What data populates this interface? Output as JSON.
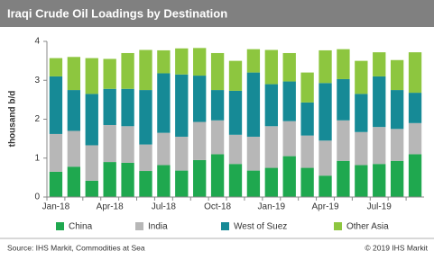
{
  "chart_data": {
    "type": "stacked-bar",
    "title": "Iraqi Crude Oil Loadings by Destination",
    "y_label": "thousand b/d",
    "categories": [
      "Jan-18",
      null,
      null,
      "Apr-18",
      null,
      null,
      "Jul-18",
      null,
      null,
      "Oct-18",
      null,
      null,
      "Jan-19",
      null,
      null,
      "Apr-19",
      null,
      null,
      "Jul-19",
      null,
      null
    ],
    "series": [
      {
        "name": "China",
        "color": "#1fa84f",
        "values": [
          0.65,
          0.78,
          0.42,
          0.9,
          0.88,
          0.67,
          0.82,
          0.68,
          0.95,
          1.1,
          0.85,
          0.68,
          0.75,
          1.05,
          0.75,
          0.55,
          0.93,
          0.82,
          0.85,
          0.93,
          1.1
        ]
      },
      {
        "name": "India",
        "color": "#b7b7b7",
        "values": [
          0.97,
          0.92,
          0.91,
          0.95,
          0.94,
          0.68,
          0.83,
          0.87,
          0.98,
          0.87,
          0.75,
          0.87,
          1.07,
          0.9,
          0.83,
          0.9,
          1.04,
          0.85,
          0.95,
          0.82,
          0.8
        ]
      },
      {
        "name": "West of Suez",
        "color": "#168a96",
        "values": [
          1.48,
          1.05,
          1.32,
          0.93,
          0.96,
          1.4,
          1.53,
          1.6,
          1.19,
          0.78,
          1.13,
          1.65,
          1.08,
          1.02,
          0.85,
          1.48,
          1.06,
          0.98,
          1.3,
          1.0,
          0.78
        ]
      },
      {
        "name": "Other Asia",
        "color": "#8dc63f",
        "values": [
          0.47,
          0.85,
          0.92,
          0.77,
          0.92,
          1.03,
          0.59,
          0.67,
          0.71,
          0.95,
          0.77,
          0.6,
          0.88,
          0.73,
          0.77,
          0.84,
          0.77,
          0.85,
          0.62,
          0.77,
          1.04
        ]
      }
    ],
    "ylim": [
      0,
      4
    ],
    "yticks": [
      0,
      1,
      2,
      3,
      4
    ],
    "grid": false,
    "source": "Source: IHS Markit, Commodities at Sea",
    "copyright": "© 2019 IHS Markit"
  }
}
